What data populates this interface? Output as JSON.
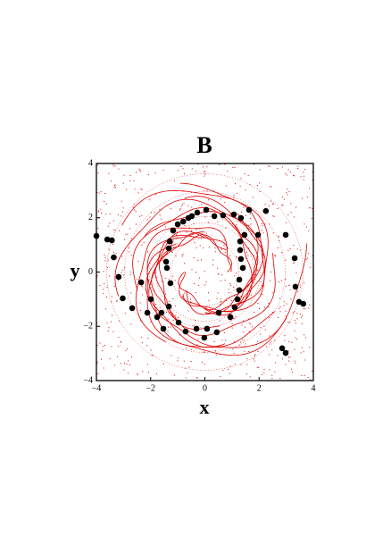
{
  "chart_data": {
    "type": "scatter",
    "title": "B",
    "x_label": "x",
    "y_label": "y",
    "xlim": [
      -4,
      4
    ],
    "ylim": [
      -4,
      4
    ],
    "xticks": [
      {
        "value": -4,
        "label": "−4"
      },
      {
        "value": -2,
        "label": "−2"
      },
      0,
      2,
      4
    ],
    "yticks": [
      {
        "value": -4,
        "label": "−4"
      },
      {
        "value": -2,
        "label": "−2"
      },
      0,
      2,
      4
    ],
    "color": "#000000",
    "background_color": "#e00000",
    "x": [
      -4.0,
      -3.6,
      -3.43,
      -3.36,
      -3.18,
      -3.03,
      -2.68,
      -2.35,
      -2.12,
      -1.99,
      -1.76,
      -1.6,
      -1.53,
      -1.33,
      -1.27,
      -1.4,
      -1.43,
      -1.33,
      -1.3,
      -1.17,
      -1.0,
      -0.8,
      -0.61,
      -0.48,
      -0.28,
      0.05,
      0.35,
      0.67,
      1.07,
      1.33,
      1.63,
      1.96,
      2.25,
      1.46,
      1.3,
      1.3,
      1.33,
      1.4,
      1.27,
      1.27,
      1.2,
      1.1,
      0.94,
      0.51,
      0.44,
      0.08,
      -0.02,
      -0.31,
      -0.71,
      -0.97,
      2.98,
      3.31,
      3.34,
      3.47,
      3.63,
      2.85,
      2.98
    ],
    "values": [
      1.33,
      1.2,
      1.17,
      0.54,
      -0.18,
      -0.97,
      -1.33,
      -0.38,
      -1.5,
      -1.0,
      -1.66,
      -1.5,
      -2.09,
      -1.27,
      -0.41,
      0.15,
      0.38,
      0.87,
      1.13,
      1.53,
      1.76,
      1.86,
      1.99,
      2.06,
      2.19,
      2.29,
      2.06,
      2.09,
      2.12,
      1.99,
      2.29,
      1.37,
      2.25,
      1.37,
      1.13,
      0.81,
      0.48,
      0.15,
      -0.28,
      -0.67,
      -1.0,
      -1.3,
      -1.66,
      -1.5,
      -2.22,
      -2.09,
      -2.42,
      -2.09,
      -2.19,
      -1.86,
      1.37,
      0.51,
      -0.54,
      -1.1,
      -1.17,
      -2.81,
      -2.98
    ]
  }
}
